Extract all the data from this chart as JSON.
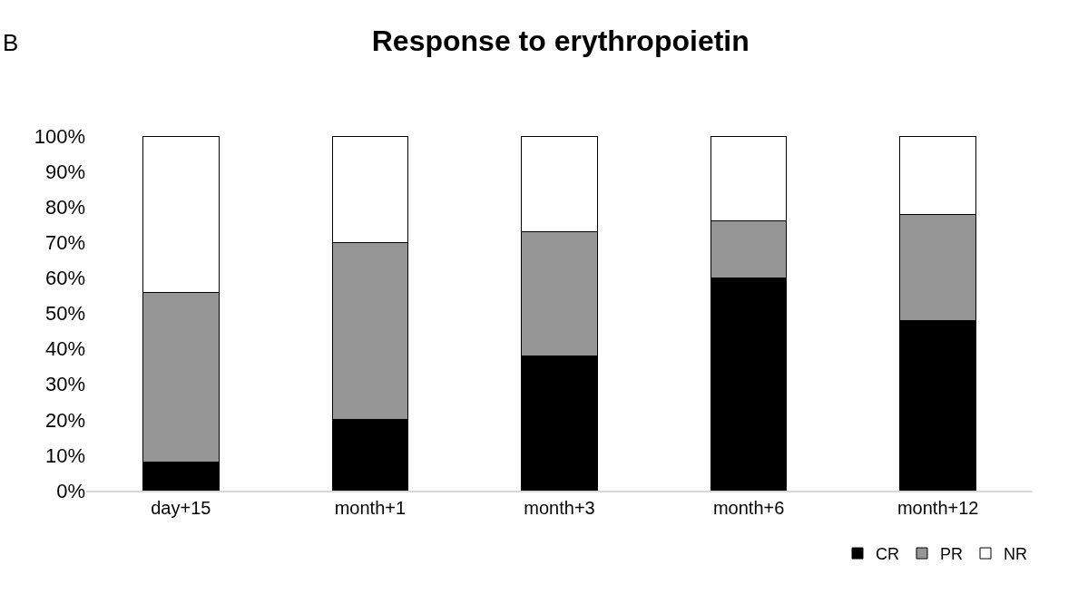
{
  "chart_data": {
    "type": "bar",
    "title": "Response to erythropoietin",
    "annotations": [
      "B"
    ],
    "categories": [
      "day+15",
      "month+1",
      "month+3",
      "month+6",
      "month+12"
    ],
    "stacked": true,
    "series": [
      {
        "name": "CR",
        "color": "#000000",
        "values": [
          8,
          20,
          38,
          60,
          48
        ]
      },
      {
        "name": "PR",
        "color": "#969696",
        "values": [
          48,
          50,
          35,
          16,
          30
        ]
      },
      {
        "name": "NR",
        "color": "#ffffff",
        "values": [
          44,
          30,
          27,
          24,
          22
        ]
      }
    ],
    "ylim": [
      0,
      100
    ],
    "yticks": [
      {
        "value": 0,
        "label": "0%"
      },
      {
        "value": 10,
        "label": "10%"
      },
      {
        "value": 20,
        "label": "20%"
      },
      {
        "value": 30,
        "label": "30%"
      },
      {
        "value": 40,
        "label": "40%"
      },
      {
        "value": 50,
        "label": "50%"
      },
      {
        "value": 60,
        "label": "60%"
      },
      {
        "value": 70,
        "label": "70%"
      },
      {
        "value": 80,
        "label": "80%"
      },
      {
        "value": 90,
        "label": "90%"
      },
      {
        "value": 100,
        "label": "100%"
      }
    ],
    "legend": "bottom right"
  }
}
